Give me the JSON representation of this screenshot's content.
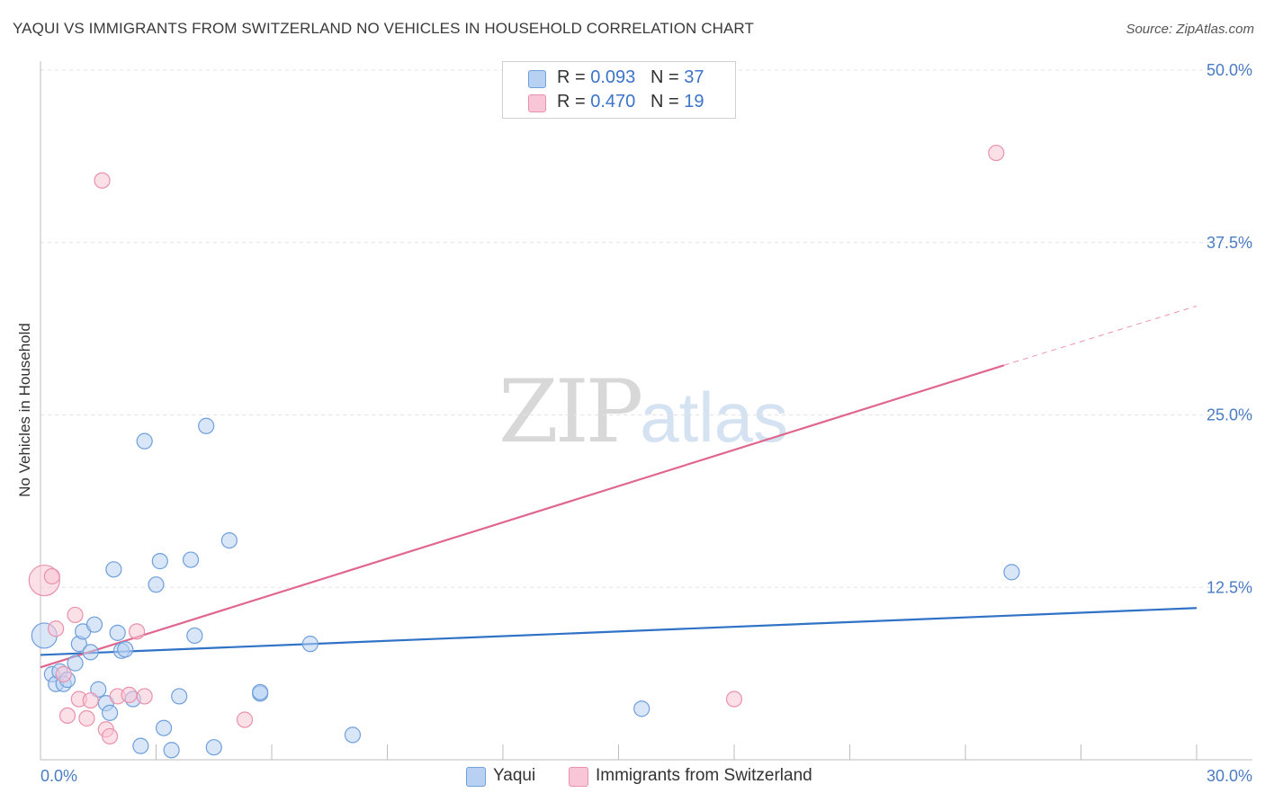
{
  "title": "YAQUI VS IMMIGRANTS FROM SWITZERLAND NO VEHICLES IN HOUSEHOLD CORRELATION CHART",
  "source": "Source: ZipAtlas.com",
  "watermark": {
    "zip": "ZIP",
    "atlas": "atlas"
  },
  "legend": {
    "rows": [
      {
        "r_label": "R = ",
        "r_value": "0.093",
        "n_label": "N = ",
        "n_value": "37"
      },
      {
        "r_label": "R = ",
        "r_value": "0.470",
        "n_label": "N = ",
        "n_value": "19"
      }
    ]
  },
  "bottom_legend": {
    "yaqui": "Yaqui",
    "swiss": "Immigrants from Switzerland"
  },
  "chart_data": {
    "type": "scatter",
    "title": "YAQUI VS IMMIGRANTS FROM SWITZERLAND NO VEHICLES IN HOUSEHOLD CORRELATION CHART",
    "xlabel": "",
    "ylabel": "No Vehicles in Household",
    "xlim": [
      0,
      30
    ],
    "ylim": [
      0,
      50
    ],
    "x_tick_labels": [
      "0.0%",
      "30.0%"
    ],
    "y_ticks": [
      12.5,
      25.0,
      37.5,
      50.0
    ],
    "y_tick_labels": [
      "12.5%",
      "25.0%",
      "37.5%",
      "50.0%"
    ],
    "grid": true,
    "colors": {
      "yaqui_fill": "#b8d1f3",
      "yaqui_edge": "#6f9fdc",
      "yaqui_line": "#2f72c6",
      "swiss_fill": "#f8c6d6",
      "swiss_edge": "#e991ad",
      "swiss_line": "#e0668e"
    },
    "series": [
      {
        "name": "Yaqui",
        "points": [
          [
            0.1,
            9.0
          ],
          [
            0.3,
            6.2
          ],
          [
            0.4,
            5.5
          ],
          [
            0.5,
            6.4
          ],
          [
            0.6,
            5.5
          ],
          [
            0.7,
            5.8
          ],
          [
            0.9,
            7.0
          ],
          [
            1.0,
            8.4
          ],
          [
            1.1,
            9.3
          ],
          [
            1.3,
            7.8
          ],
          [
            1.4,
            9.8
          ],
          [
            1.5,
            5.1
          ],
          [
            1.7,
            4.1
          ],
          [
            1.8,
            3.4
          ],
          [
            1.9,
            13.8
          ],
          [
            2.0,
            9.2
          ],
          [
            2.1,
            7.9
          ],
          [
            2.2,
            8.0
          ],
          [
            2.4,
            4.4
          ],
          [
            2.6,
            1.0
          ],
          [
            2.7,
            23.1
          ],
          [
            3.0,
            12.7
          ],
          [
            3.1,
            14.4
          ],
          [
            3.2,
            2.3
          ],
          [
            3.4,
            0.7
          ],
          [
            3.6,
            4.6
          ],
          [
            3.9,
            14.5
          ],
          [
            4.0,
            9.0
          ],
          [
            4.3,
            24.2
          ],
          [
            4.5,
            0.9
          ],
          [
            4.9,
            15.9
          ],
          [
            5.7,
            4.8
          ],
          [
            5.7,
            4.9
          ],
          [
            7.0,
            8.4
          ],
          [
            8.1,
            1.8
          ],
          [
            15.6,
            3.7
          ],
          [
            25.2,
            13.6
          ]
        ],
        "trend": {
          "x0": 0,
          "y0": 7.6,
          "x1": 30,
          "y1": 11.0
        }
      },
      {
        "name": "Immigrants from Switzerland",
        "points": [
          [
            0.1,
            13.0
          ],
          [
            0.3,
            13.3
          ],
          [
            0.4,
            9.5
          ],
          [
            0.6,
            6.2
          ],
          [
            0.7,
            3.2
          ],
          [
            0.9,
            10.5
          ],
          [
            1.0,
            4.4
          ],
          [
            1.2,
            3.0
          ],
          [
            1.3,
            4.3
          ],
          [
            1.6,
            42.0
          ],
          [
            1.7,
            2.2
          ],
          [
            1.8,
            1.7
          ],
          [
            2.0,
            4.6
          ],
          [
            2.3,
            4.7
          ],
          [
            2.5,
            9.3
          ],
          [
            2.7,
            4.6
          ],
          [
            5.3,
            2.9
          ],
          [
            18.0,
            4.4
          ],
          [
            24.8,
            44.0
          ]
        ],
        "trend": {
          "x0": 0,
          "y0": 6.7,
          "x1": 25,
          "y1": 28.6,
          "dash_to_x": 30,
          "dash_to_y": 32.9
        }
      }
    ]
  }
}
